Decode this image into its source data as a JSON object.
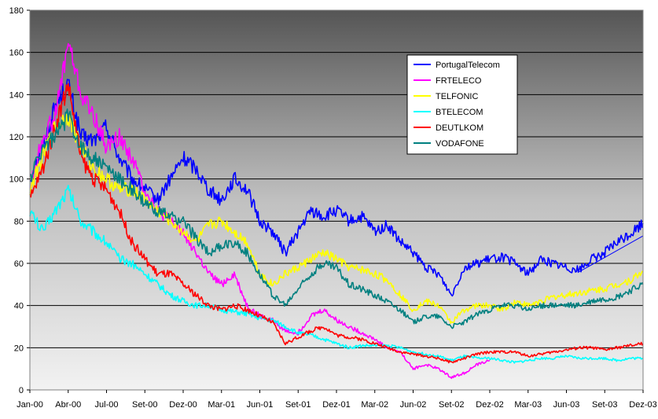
{
  "chart_data": {
    "type": "line",
    "ylim": [
      0,
      180
    ],
    "yticks": [
      0,
      20,
      40,
      60,
      80,
      100,
      120,
      140,
      160,
      180
    ],
    "xlim": [
      0,
      48
    ],
    "xticks": [
      {
        "pos": 0,
        "label": "Jan-00"
      },
      {
        "pos": 3,
        "label": "Abr-00"
      },
      {
        "pos": 6,
        "label": "Jul-00"
      },
      {
        "pos": 9,
        "label": "Set-00"
      },
      {
        "pos": 12,
        "label": "Dez-00"
      },
      {
        "pos": 15,
        "label": "Mar-01"
      },
      {
        "pos": 18,
        "label": "Jun-01"
      },
      {
        "pos": 21,
        "label": "Set-01"
      },
      {
        "pos": 24,
        "label": "Dez-01"
      },
      {
        "pos": 27,
        "label": "Mar-02"
      },
      {
        "pos": 30,
        "label": "Jun-02"
      },
      {
        "pos": 33,
        "label": "Set-02"
      },
      {
        "pos": 36,
        "label": "Dez-02"
      },
      {
        "pos": 39,
        "label": "Mar-03"
      },
      {
        "pos": 42,
        "label": "Jun-03"
      },
      {
        "pos": 45,
        "label": "Set-03"
      },
      {
        "pos": 48,
        "label": "Dez-03"
      }
    ],
    "grid": true,
    "legend_position": "top-right",
    "background": "gradient dark grey to light grey",
    "series": [
      {
        "name": "PortugalTelecom",
        "color": "#0000ff",
        "points": [
          [
            0,
            100
          ],
          [
            1,
            115
          ],
          [
            2,
            135
          ],
          [
            3,
            145
          ],
          [
            4,
            120
          ],
          [
            5,
            118
          ],
          [
            6,
            125
          ],
          [
            7,
            110
          ],
          [
            8,
            100
          ],
          [
            9,
            95
          ],
          [
            10,
            90
          ],
          [
            11,
            100
          ],
          [
            12,
            110
          ],
          [
            13,
            105
          ],
          [
            14,
            95
          ],
          [
            15,
            90
          ],
          [
            16,
            100
          ],
          [
            17,
            95
          ],
          [
            18,
            80
          ],
          [
            19,
            75
          ],
          [
            20,
            65
          ],
          [
            21,
            75
          ],
          [
            22,
            85
          ],
          [
            23,
            82
          ],
          [
            24,
            85
          ],
          [
            25,
            80
          ],
          [
            26,
            82
          ],
          [
            27,
            75
          ],
          [
            28,
            78
          ],
          [
            29,
            70
          ],
          [
            30,
            65
          ],
          [
            31,
            58
          ],
          [
            32,
            55
          ],
          [
            33,
            45
          ],
          [
            34,
            58
          ],
          [
            35,
            60
          ],
          [
            36,
            62
          ],
          [
            37,
            63
          ],
          [
            38,
            60
          ],
          [
            39,
            55
          ],
          [
            40,
            62
          ],
          [
            41,
            60
          ],
          [
            42,
            58
          ],
          [
            43,
            57
          ],
          [
            44,
            62
          ],
          [
            45,
            65
          ],
          [
            46,
            70
          ],
          [
            47,
            74
          ],
          [
            48,
            79
          ]
        ]
      },
      {
        "name": "FRTELECO",
        "color": "#ff00ff",
        "points": [
          [
            0,
            95
          ],
          [
            1,
            120
          ],
          [
            2,
            130
          ],
          [
            3,
            165
          ],
          [
            4,
            140
          ],
          [
            5,
            130
          ],
          [
            6,
            115
          ],
          [
            7,
            120
          ],
          [
            8,
            110
          ],
          [
            9,
            95
          ],
          [
            10,
            85
          ],
          [
            11,
            80
          ],
          [
            12,
            75
          ],
          [
            13,
            65
          ],
          [
            14,
            55
          ],
          [
            15,
            50
          ],
          [
            16,
            55
          ],
          [
            17,
            40
          ],
          [
            18,
            35
          ],
          [
            19,
            33
          ],
          [
            20,
            28
          ],
          [
            21,
            27
          ],
          [
            22,
            35
          ],
          [
            23,
            38
          ],
          [
            24,
            33
          ],
          [
            25,
            30
          ],
          [
            26,
            27
          ],
          [
            27,
            24
          ],
          [
            28,
            20
          ],
          [
            29,
            18
          ],
          [
            30,
            10
          ],
          [
            31,
            12
          ],
          [
            32,
            10
          ],
          [
            33,
            6
          ],
          [
            34,
            8
          ],
          [
            35,
            12
          ],
          [
            36,
            14
          ]
        ]
      },
      {
        "name": "TELFONIC",
        "color": "#ffff00",
        "points": [
          [
            0,
            95
          ],
          [
            1,
            110
          ],
          [
            2,
            125
          ],
          [
            3,
            130
          ],
          [
            4,
            115
          ],
          [
            5,
            105
          ],
          [
            6,
            100
          ],
          [
            7,
            95
          ],
          [
            8,
            95
          ],
          [
            9,
            90
          ],
          [
            10,
            85
          ],
          [
            11,
            80
          ],
          [
            12,
            75
          ],
          [
            13,
            70
          ],
          [
            14,
            78
          ],
          [
            15,
            80
          ],
          [
            16,
            75
          ],
          [
            17,
            70
          ],
          [
            18,
            55
          ],
          [
            19,
            50
          ],
          [
            20,
            55
          ],
          [
            21,
            58
          ],
          [
            22,
            62
          ],
          [
            23,
            65
          ],
          [
            24,
            62
          ],
          [
            25,
            58
          ],
          [
            26,
            57
          ],
          [
            27,
            55
          ],
          [
            28,
            52
          ],
          [
            29,
            45
          ],
          [
            30,
            38
          ],
          [
            31,
            42
          ],
          [
            32,
            40
          ],
          [
            33,
            32
          ],
          [
            34,
            38
          ],
          [
            35,
            40
          ],
          [
            36,
            40
          ],
          [
            37,
            38
          ],
          [
            38,
            42
          ],
          [
            39,
            40
          ],
          [
            40,
            42
          ],
          [
            41,
            44
          ],
          [
            42,
            45
          ],
          [
            43,
            46
          ],
          [
            44,
            47
          ],
          [
            45,
            48
          ],
          [
            46,
            50
          ],
          [
            47,
            52
          ],
          [
            48,
            56
          ]
        ]
      },
      {
        "name": "BTELECOM",
        "color": "#00ffff",
        "points": [
          [
            0,
            85
          ],
          [
            1,
            75
          ],
          [
            2,
            85
          ],
          [
            3,
            95
          ],
          [
            4,
            80
          ],
          [
            5,
            75
          ],
          [
            6,
            70
          ],
          [
            7,
            62
          ],
          [
            8,
            60
          ],
          [
            9,
            55
          ],
          [
            10,
            50
          ],
          [
            11,
            45
          ],
          [
            12,
            42
          ],
          [
            13,
            40
          ],
          [
            14,
            40
          ],
          [
            15,
            38
          ],
          [
            16,
            37
          ],
          [
            17,
            36
          ],
          [
            18,
            34
          ],
          [
            19,
            33
          ],
          [
            20,
            30
          ],
          [
            21,
            27
          ],
          [
            22,
            26
          ],
          [
            23,
            24
          ],
          [
            24,
            22
          ],
          [
            25,
            20
          ],
          [
            26,
            21
          ],
          [
            27,
            21
          ],
          [
            28,
            21
          ],
          [
            29,
            20
          ],
          [
            30,
            18
          ],
          [
            31,
            17
          ],
          [
            32,
            16
          ],
          [
            33,
            14
          ],
          [
            34,
            16
          ],
          [
            35,
            15
          ],
          [
            36,
            15
          ],
          [
            37,
            14
          ],
          [
            38,
            13
          ],
          [
            39,
            14
          ],
          [
            40,
            15
          ],
          [
            41,
            15
          ],
          [
            42,
            16
          ],
          [
            43,
            15
          ],
          [
            44,
            15
          ],
          [
            45,
            15
          ],
          [
            46,
            14
          ],
          [
            47,
            15
          ],
          [
            48,
            15
          ]
        ]
      },
      {
        "name": "DEUTLKOM",
        "color": "#ff0000",
        "points": [
          [
            0,
            90
          ],
          [
            1,
            105
          ],
          [
            2,
            125
          ],
          [
            3,
            145
          ],
          [
            4,
            110
          ],
          [
            5,
            100
          ],
          [
            6,
            95
          ],
          [
            7,
            85
          ],
          [
            8,
            70
          ],
          [
            9,
            62
          ],
          [
            10,
            55
          ],
          [
            11,
            55
          ],
          [
            12,
            50
          ],
          [
            13,
            45
          ],
          [
            14,
            40
          ],
          [
            15,
            38
          ],
          [
            16,
            40
          ],
          [
            17,
            38
          ],
          [
            18,
            35
          ],
          [
            19,
            32
          ],
          [
            20,
            22
          ],
          [
            21,
            25
          ],
          [
            22,
            28
          ],
          [
            23,
            30
          ],
          [
            24,
            26
          ],
          [
            25,
            25
          ],
          [
            26,
            24
          ],
          [
            27,
            22
          ],
          [
            28,
            20
          ],
          [
            29,
            18
          ],
          [
            30,
            17
          ],
          [
            31,
            16
          ],
          [
            32,
            15
          ],
          [
            33,
            13
          ],
          [
            34,
            15
          ],
          [
            35,
            17
          ],
          [
            36,
            18
          ],
          [
            37,
            18
          ],
          [
            38,
            18
          ],
          [
            39,
            16
          ],
          [
            40,
            17
          ],
          [
            41,
            18
          ],
          [
            42,
            19
          ],
          [
            43,
            20
          ],
          [
            44,
            20
          ],
          [
            45,
            19
          ],
          [
            46,
            20
          ],
          [
            47,
            21
          ],
          [
            48,
            22
          ]
        ]
      },
      {
        "name": "VODAFONE",
        "color": "#008080",
        "points": [
          [
            0,
            100
          ],
          [
            1,
            115
          ],
          [
            2,
            120
          ],
          [
            3,
            130
          ],
          [
            4,
            115
          ],
          [
            5,
            110
          ],
          [
            6,
            105
          ],
          [
            7,
            100
          ],
          [
            8,
            95
          ],
          [
            9,
            88
          ],
          [
            10,
            85
          ],
          [
            11,
            82
          ],
          [
            12,
            80
          ],
          [
            13,
            72
          ],
          [
            14,
            65
          ],
          [
            15,
            68
          ],
          [
            16,
            70
          ],
          [
            17,
            65
          ],
          [
            18,
            55
          ],
          [
            19,
            45
          ],
          [
            20,
            40
          ],
          [
            21,
            48
          ],
          [
            22,
            55
          ],
          [
            23,
            60
          ],
          [
            24,
            58
          ],
          [
            25,
            50
          ],
          [
            26,
            48
          ],
          [
            27,
            45
          ],
          [
            28,
            42
          ],
          [
            29,
            38
          ],
          [
            30,
            32
          ],
          [
            31,
            35
          ],
          [
            32,
            35
          ],
          [
            33,
            30
          ],
          [
            34,
            32
          ],
          [
            35,
            36
          ],
          [
            36,
            38
          ],
          [
            37,
            40
          ],
          [
            38,
            40
          ],
          [
            39,
            38
          ],
          [
            40,
            40
          ],
          [
            41,
            40
          ],
          [
            42,
            40
          ],
          [
            43,
            40
          ],
          [
            44,
            42
          ],
          [
            45,
            43
          ],
          [
            46,
            44
          ],
          [
            47,
            47
          ],
          [
            48,
            50
          ]
        ]
      }
    ],
    "trendline": {
      "color": "#0000ff",
      "points": [
        [
          43,
          56
        ],
        [
          48,
          73
        ]
      ]
    }
  }
}
